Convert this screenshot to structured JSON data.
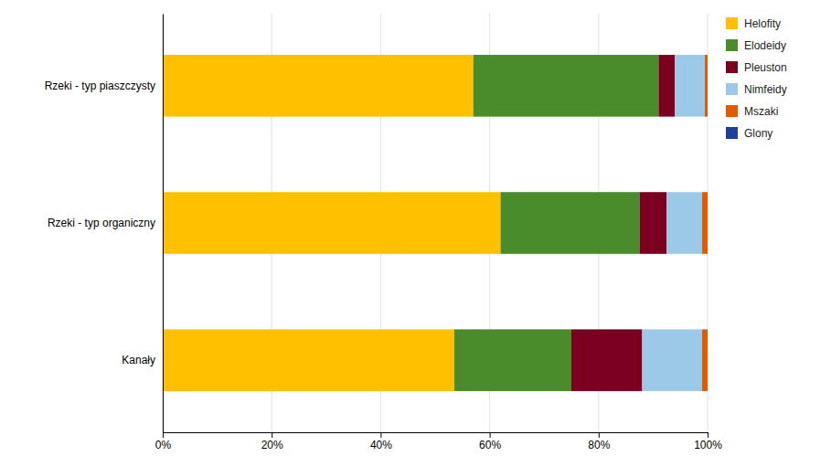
{
  "chart_data": {
    "type": "bar",
    "orientation": "horizontal",
    "stacked": true,
    "categories": [
      "Kanały",
      "Rzeki - typ organiczny",
      "Rzeki - typ piaszczysty"
    ],
    "series": [
      {
        "name": "Helofity",
        "color": "#FFC000",
        "values": [
          0.535,
          0.62,
          0.57
        ]
      },
      {
        "name": "Elodeidy",
        "color": "#4A8B2C",
        "values": [
          0.215,
          0.255,
          0.34
        ]
      },
      {
        "name": "Pleuston",
        "color": "#7B0020",
        "values": [
          0.13,
          0.05,
          0.03
        ]
      },
      {
        "name": "Nimfeidy",
        "color": "#9DC9E8",
        "values": [
          0.11,
          0.065,
          0.055
        ]
      },
      {
        "name": "Mszaki",
        "color": "#E05A00",
        "values": [
          0.01,
          0.01,
          0.005
        ]
      },
      {
        "name": "Glony",
        "color": "#1F3F99",
        "values": [
          0.0,
          0.0,
          0.0
        ]
      }
    ],
    "xlim": [
      0,
      1.0
    ],
    "xticks": [
      {
        "value": 0.0,
        "label": "0%"
      },
      {
        "value": 0.2,
        "label": "20%"
      },
      {
        "value": 0.4,
        "label": "40%"
      },
      {
        "value": 0.6,
        "label": "60%"
      },
      {
        "value": 0.8,
        "label": "80%"
      },
      {
        "value": 1.0,
        "label": "100%"
      }
    ],
    "grid": true,
    "legend": "right"
  }
}
